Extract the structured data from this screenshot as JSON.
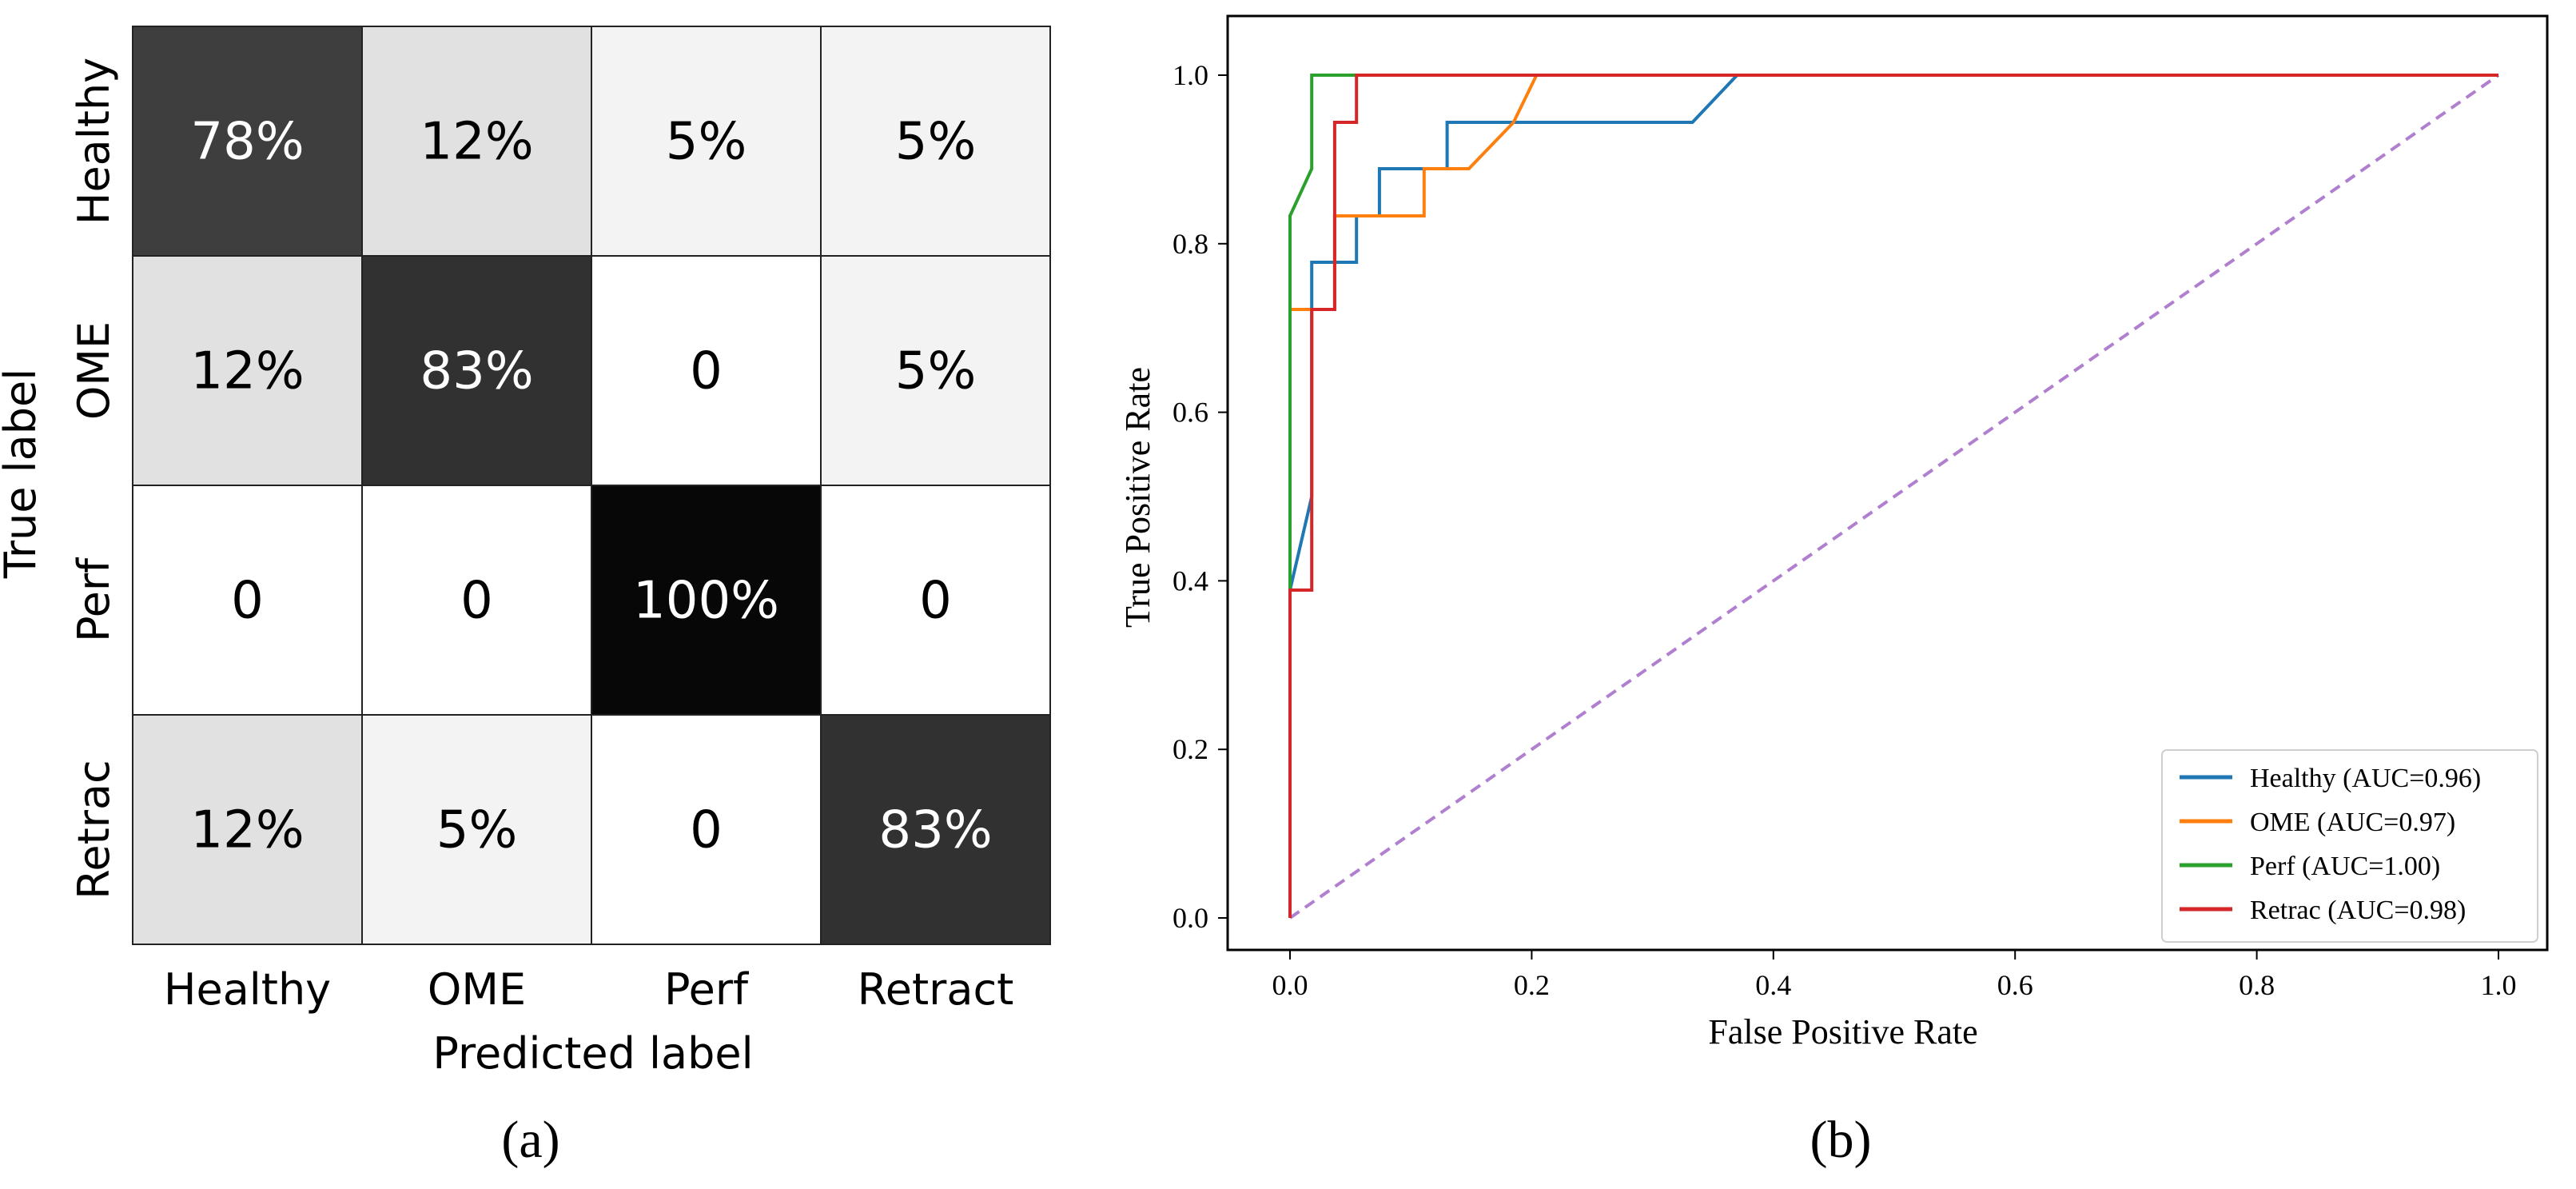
{
  "chart_data": [
    {
      "type": "heatmap",
      "title": "",
      "xlabel": "Predicted label",
      "ylabel": "True label",
      "row_labels": [
        "Healthy",
        "OME",
        "Perf",
        "Retrac"
      ],
      "col_labels": [
        "Healthy",
        "OME",
        "Perf",
        "Retract"
      ],
      "values": [
        [
          78,
          12,
          5,
          5
        ],
        [
          12,
          83,
          0,
          5
        ],
        [
          0,
          0,
          100,
          0
        ],
        [
          12,
          5,
          0,
          83
        ]
      ],
      "cell_text": [
        [
          "78%",
          "12%",
          "5%",
          "5%"
        ],
        [
          "12%",
          "83%",
          "0",
          "5%"
        ],
        [
          "0",
          "0",
          "100%",
          "0"
        ],
        [
          "12%",
          "5%",
          "0",
          "83%"
        ]
      ],
      "colormap": "greys",
      "panel_label": "(a)"
    },
    {
      "type": "line",
      "title": "",
      "xlabel": "False Positive Rate",
      "ylabel": "True Positive Rate",
      "xlim": [
        0,
        1
      ],
      "ylim": [
        0,
        1
      ],
      "xticks": [
        "0.0",
        "0.2",
        "0.4",
        "0.6",
        "0.8",
        "1.0"
      ],
      "yticks": [
        "0.0",
        "0.2",
        "0.4",
        "0.6",
        "0.8",
        "1.0"
      ],
      "legend_position": "bottom-right",
      "series": [
        {
          "name": "Healthy (AUC=0.96)",
          "color": "#1f77b4",
          "x": [
            0,
            0,
            0.018,
            0.018,
            0.018,
            0.055,
            0.055,
            0.074,
            0.074,
            0.13,
            0.13,
            0.333,
            0.37,
            1.0
          ],
          "y": [
            0,
            0.389,
            0.5,
            0.722,
            0.778,
            0.778,
            0.833,
            0.833,
            0.889,
            0.889,
            0.944,
            0.944,
            1.0,
            1.0
          ]
        },
        {
          "name": "OME (AUC=0.97)",
          "color": "#ff7f0e",
          "x": [
            0,
            0,
            0.037,
            0.037,
            0.111,
            0.111,
            0.148,
            0.185,
            0.204,
            1.0
          ],
          "y": [
            0,
            0.722,
            0.722,
            0.833,
            0.833,
            0.889,
            0.889,
            0.944,
            1.0,
            1.0
          ],
          "_label_ref": "OME"
        },
        {
          "name": "Perf (AUC=1.00)",
          "color": "#2ca02c",
          "x": [
            0,
            0,
            0.018,
            0.018,
            1.0
          ],
          "y": [
            0,
            0.833,
            0.889,
            1.0,
            1.0
          ]
        },
        {
          "name": "Retrac (AUC=0.98)",
          "color": "#d62728",
          "x": [
            0,
            0,
            0.018,
            0.018,
            0.037,
            0.037,
            0.055,
            0.055,
            1.0
          ],
          "y": [
            0,
            0.389,
            0.389,
            0.722,
            0.722,
            0.944,
            0.944,
            1.0,
            1.0
          ]
        },
        {
          "name": "",
          "color": "#b07fcf",
          "dashed": true,
          "x": [
            0,
            1
          ],
          "y": [
            0,
            1
          ]
        }
      ],
      "panel_label": "(b)"
    }
  ]
}
